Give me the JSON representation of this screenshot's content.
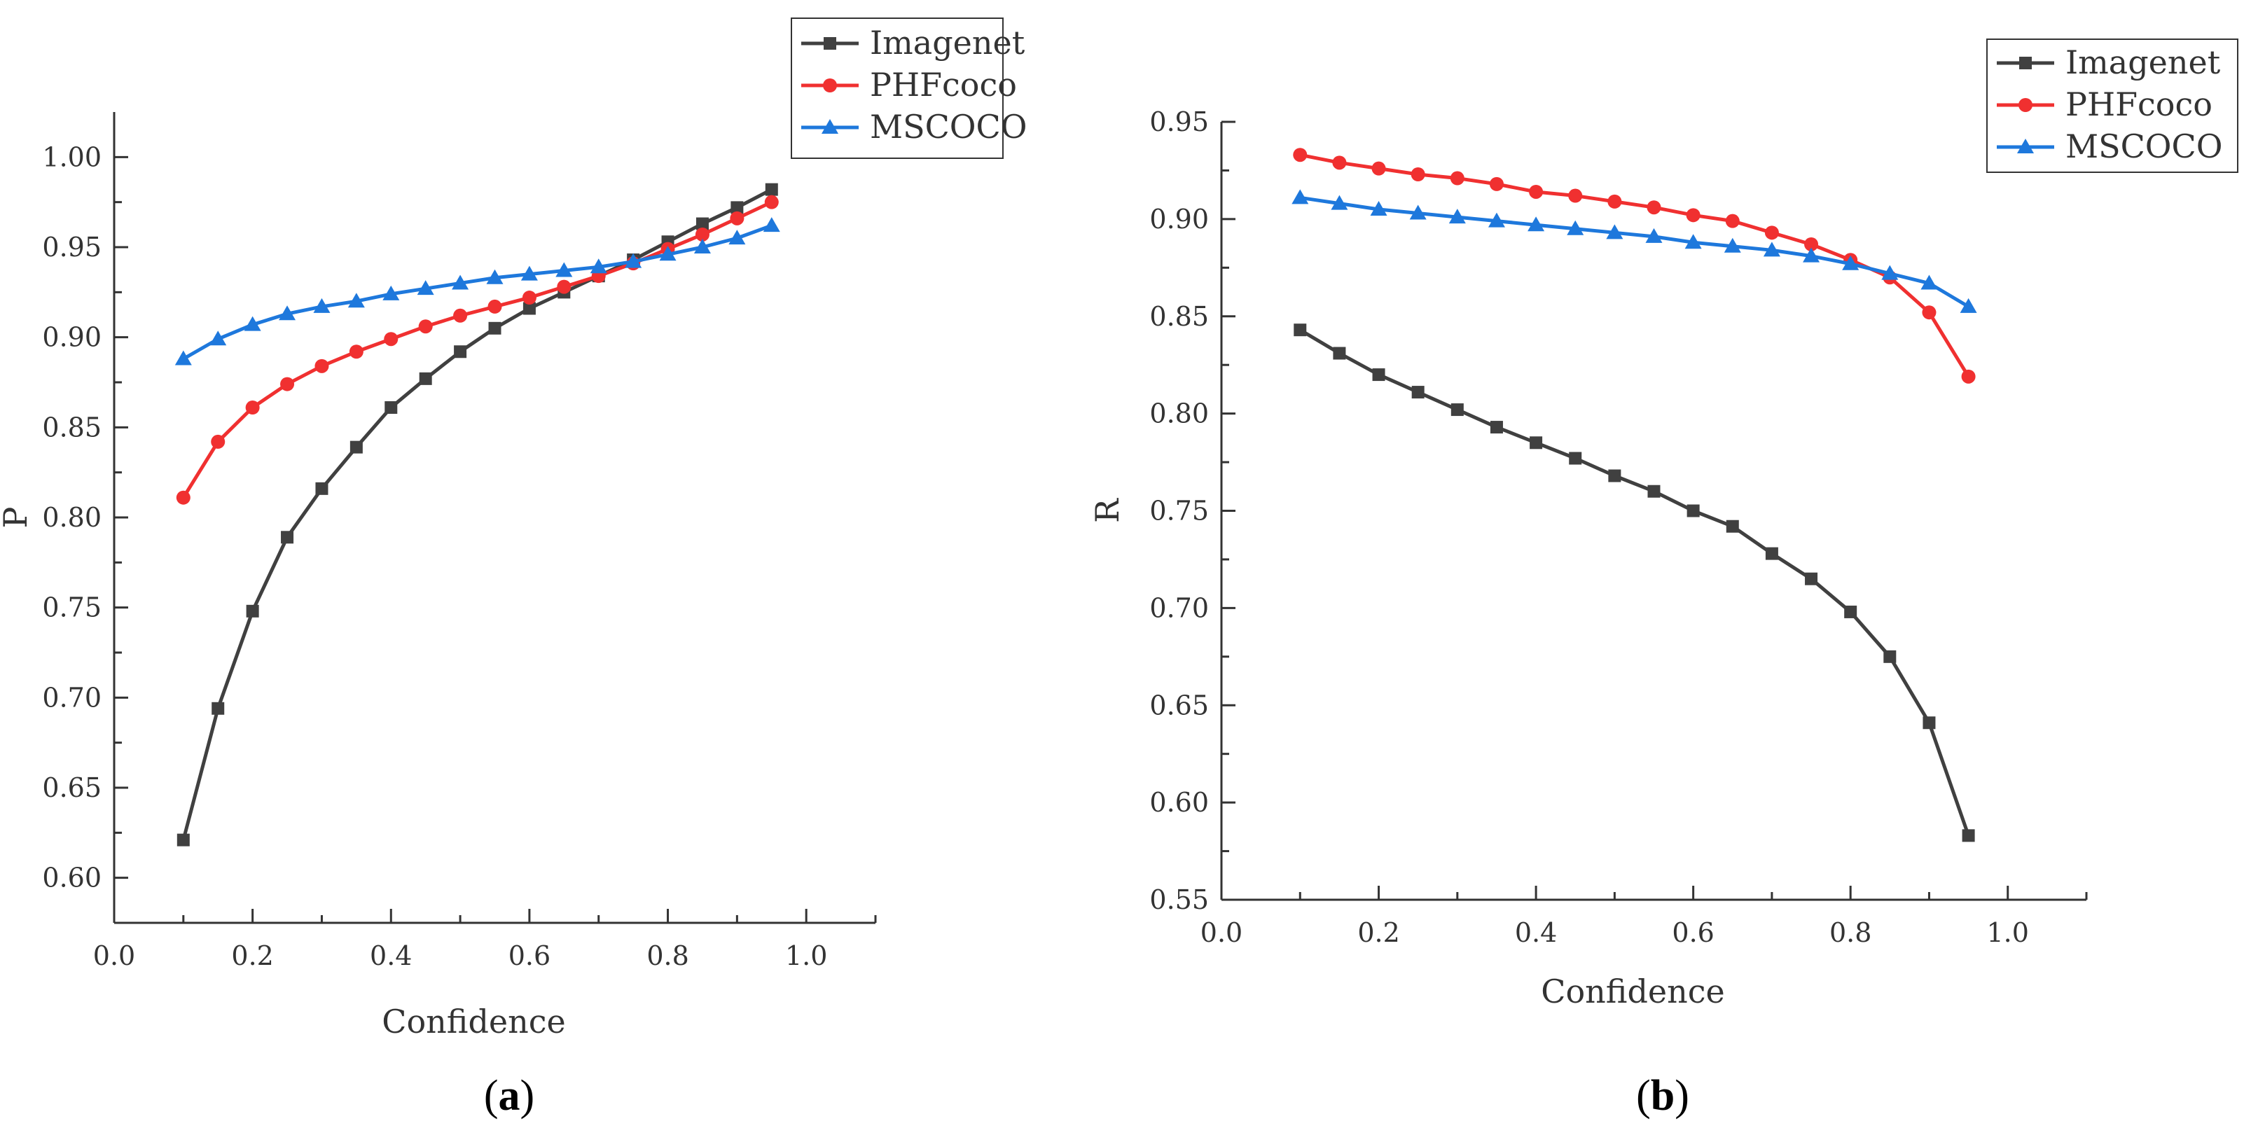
{
  "chart_data": [
    {
      "type": "line",
      "panel_label": "a",
      "title": "",
      "xlabel": "Confidence",
      "ylabel": "P",
      "xlim": [
        0.0,
        1.1
      ],
      "ylim": [
        0.575,
        1.025
      ],
      "xticks": [
        0.0,
        0.2,
        0.4,
        0.6,
        0.8,
        1.0
      ],
      "xtick_labels": [
        "0.0",
        "0.2",
        "0.4",
        "0.6",
        "0.8",
        "1.0"
      ],
      "yticks": [
        0.6,
        0.65,
        0.7,
        0.75,
        0.8,
        0.85,
        0.9,
        0.95,
        1.0
      ],
      "ytick_labels": [
        "0.60",
        "0.65",
        "0.70",
        "0.75",
        "0.80",
        "0.85",
        "0.90",
        "0.95",
        "1.00"
      ],
      "grid": false,
      "legend_position": "top-right",
      "x": [
        0.1,
        0.15,
        0.2,
        0.25,
        0.3,
        0.35,
        0.4,
        0.45,
        0.5,
        0.55,
        0.6,
        0.65,
        0.7,
        0.75,
        0.8,
        0.85,
        0.9,
        0.95
      ],
      "series": [
        {
          "name": "Imagenet",
          "color": "#404040",
          "marker": "square",
          "values": [
            0.621,
            0.694,
            0.748,
            0.789,
            0.816,
            0.839,
            0.861,
            0.877,
            0.892,
            0.905,
            0.916,
            0.925,
            0.934,
            0.943,
            0.953,
            0.963,
            0.972,
            0.982
          ]
        },
        {
          "name": "PHFcoco",
          "color": "#f03030",
          "marker": "circle",
          "values": [
            0.811,
            0.842,
            0.861,
            0.874,
            0.884,
            0.892,
            0.899,
            0.906,
            0.912,
            0.917,
            0.922,
            0.928,
            0.934,
            0.941,
            0.949,
            0.957,
            0.966,
            0.975
          ]
        },
        {
          "name": "MSCOCO",
          "color": "#1e78dc",
          "marker": "triangle",
          "values": [
            0.888,
            0.899,
            0.907,
            0.913,
            0.917,
            0.92,
            0.924,
            0.927,
            0.93,
            0.933,
            0.935,
            0.937,
            0.939,
            0.942,
            0.946,
            0.95,
            0.955,
            0.962
          ]
        }
      ]
    },
    {
      "type": "line",
      "panel_label": "b",
      "title": "",
      "xlabel": "Confidence",
      "ylabel": "R",
      "xlim": [
        0.0,
        1.1
      ],
      "ylim": [
        0.55,
        0.95
      ],
      "xticks": [
        0.0,
        0.2,
        0.4,
        0.6,
        0.8,
        1.0
      ],
      "xtick_labels": [
        "0.0",
        "0.2",
        "0.4",
        "0.6",
        "0.8",
        "1.0"
      ],
      "yticks": [
        0.55,
        0.6,
        0.65,
        0.7,
        0.75,
        0.8,
        0.85,
        0.9,
        0.95
      ],
      "ytick_labels": [
        "0.55",
        "0.60",
        "0.65",
        "0.70",
        "0.75",
        "0.80",
        "0.85",
        "0.90",
        "0.95"
      ],
      "grid": false,
      "legend_position": "top-right",
      "x": [
        0.1,
        0.15,
        0.2,
        0.25,
        0.3,
        0.35,
        0.4,
        0.45,
        0.5,
        0.55,
        0.6,
        0.65,
        0.7,
        0.75,
        0.8,
        0.85,
        0.9,
        0.95
      ],
      "series": [
        {
          "name": "Imagenet",
          "color": "#404040",
          "marker": "square",
          "values": [
            0.843,
            0.831,
            0.82,
            0.811,
            0.802,
            0.793,
            0.785,
            0.777,
            0.768,
            0.76,
            0.75,
            0.742,
            0.728,
            0.715,
            0.698,
            0.675,
            0.641,
            0.583
          ]
        },
        {
          "name": "PHFcoco",
          "color": "#f03030",
          "marker": "circle",
          "values": [
            0.933,
            0.929,
            0.926,
            0.923,
            0.921,
            0.918,
            0.914,
            0.912,
            0.909,
            0.906,
            0.902,
            0.899,
            0.893,
            0.887,
            0.879,
            0.87,
            0.852,
            0.819
          ]
        },
        {
          "name": "MSCOCO",
          "color": "#1e78dc",
          "marker": "triangle",
          "values": [
            0.911,
            0.908,
            0.905,
            0.903,
            0.901,
            0.899,
            0.897,
            0.895,
            0.893,
            0.891,
            0.888,
            0.886,
            0.884,
            0.881,
            0.877,
            0.872,
            0.867,
            0.855
          ]
        }
      ]
    }
  ]
}
